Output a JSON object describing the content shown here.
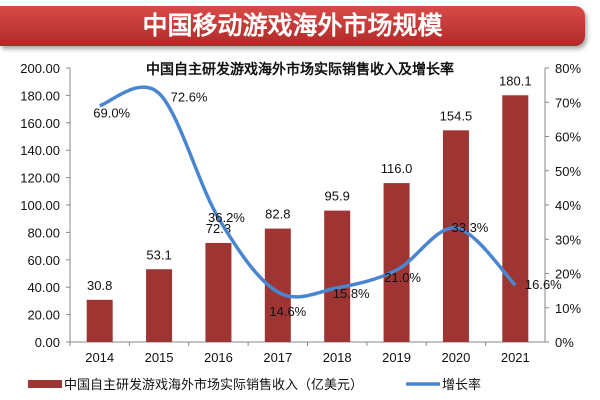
{
  "banner_title": "中国移动游戏海外市场规模",
  "chart_data": {
    "type": "bar+line",
    "title": "中国自主研发游戏海外市场实际销售收入及增长率",
    "categories": [
      "2014",
      "2015",
      "2016",
      "2017",
      "2018",
      "2019",
      "2020",
      "2021"
    ],
    "series": [
      {
        "name": "中国自主研发游戏海外市场实际销售收入（亿美元）",
        "type": "bar",
        "axis": "left",
        "color": "#9e3533",
        "values": [
          30.8,
          53.1,
          72.3,
          82.8,
          95.9,
          116.0,
          154.5,
          180.1
        ],
        "labels": [
          "30.8",
          "53.1",
          "72.3",
          "82.8",
          "95.9",
          "116.0",
          "154.5",
          "180.1"
        ]
      },
      {
        "name": "增长率",
        "type": "line",
        "axis": "right",
        "color": "#4a86d0",
        "values": [
          69.0,
          72.6,
          36.2,
          14.6,
          15.8,
          21.0,
          33.3,
          16.6
        ],
        "labels": [
          "69.0%",
          "72.6%",
          "36.2%",
          "14.6%",
          "15.8%",
          "21.0%",
          "33.3%",
          "16.6%"
        ]
      }
    ],
    "ylim_left": [
      0,
      200
    ],
    "yticks_left": [
      "0.00",
      "20.00",
      "40.00",
      "60.00",
      "80.00",
      "100.00",
      "120.00",
      "140.00",
      "160.00",
      "180.00",
      "200.00"
    ],
    "ylim_right": [
      0,
      80
    ],
    "yticks_right": [
      "0%",
      "10%",
      "20%",
      "30%",
      "40%",
      "50%",
      "60%",
      "70%",
      "80%"
    ],
    "grid": false,
    "legend_position": "bottom"
  }
}
